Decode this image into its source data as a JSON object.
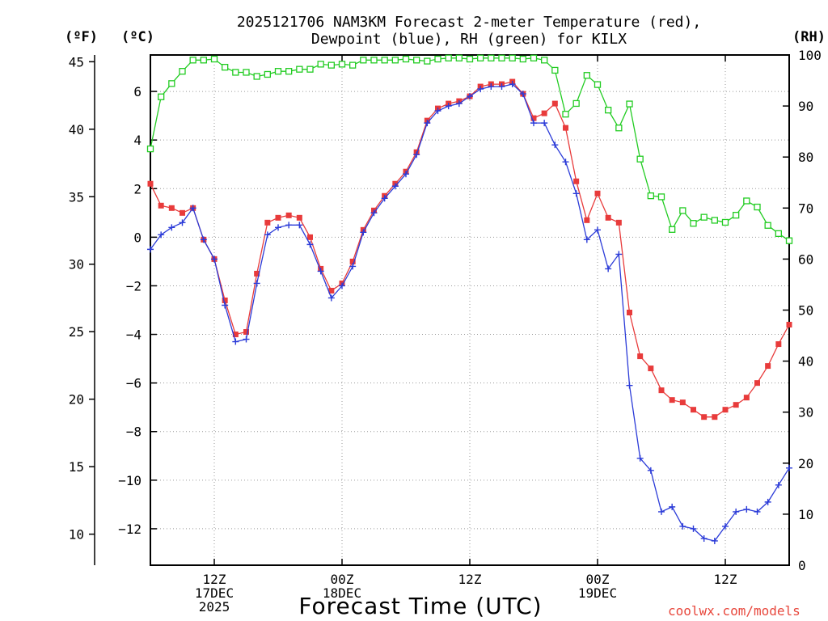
{
  "chart_data": {
    "type": "line",
    "title_line1": "2025121706 NAM3KM Forecast 2-meter Temperature (red),",
    "title_line2": "Dewpoint (blue), RH (green) for KILX",
    "units": {
      "fahrenheit": "(ºF)",
      "celsius": "(ºC)",
      "rh": "(RH)"
    },
    "xlabel": "Forecast Time (UTC)",
    "credit": "coolwx.com/models",
    "x_range_hours": [
      0,
      60
    ],
    "x_ticks": [
      {
        "hour": 6,
        "labels": [
          "12Z",
          "17DEC",
          "2025"
        ]
      },
      {
        "hour": 18,
        "labels": [
          "00Z",
          "18DEC"
        ]
      },
      {
        "hour": 30,
        "labels": [
          "12Z"
        ]
      },
      {
        "hour": 42,
        "labels": [
          "00Z",
          "19DEC"
        ]
      },
      {
        "hour": 54,
        "labels": [
          "12Z"
        ]
      }
    ],
    "y_celsius": {
      "range": [
        -13.5,
        7.5
      ],
      "ticks": [
        6,
        4,
        2,
        0,
        -2,
        -4,
        -6,
        -8,
        -10,
        -12
      ],
      "tick_labels": [
        "6",
        "4",
        "2",
        "0",
        "−2",
        "−4",
        "−6",
        "−8",
        "−10",
        "−12"
      ]
    },
    "y_fahrenheit": {
      "ticks": [
        45,
        40,
        35,
        30,
        25,
        20,
        15,
        10
      ],
      "tick_labels": [
        "45",
        "40",
        "35",
        "30",
        "25",
        "20",
        "15",
        "10"
      ]
    },
    "y_rh": {
      "range": [
        0,
        100
      ],
      "ticks": [
        100,
        90,
        80,
        70,
        60,
        50,
        40,
        30,
        20,
        10,
        0
      ],
      "tick_labels": [
        "100",
        "90",
        "80",
        "70",
        "60",
        "50",
        "40",
        "30",
        "20",
        "10",
        "0"
      ]
    },
    "series": [
      {
        "name": "Temperature (°C)",
        "color": "#e83b3b",
        "marker": "square",
        "axis": "celsius",
        "x": [
          0,
          1,
          2,
          3,
          4,
          5,
          6,
          7,
          8,
          9,
          10,
          11,
          12,
          13,
          14,
          15,
          16,
          17,
          18,
          19,
          20,
          21,
          22,
          23,
          24,
          25,
          26,
          27,
          28,
          29,
          30,
          31,
          32,
          33,
          34,
          35,
          36,
          37,
          38,
          39,
          40,
          41,
          42,
          43,
          44,
          45,
          46,
          47,
          48,
          49,
          50,
          51,
          52,
          53,
          54,
          55,
          56,
          57,
          58,
          59,
          60
        ],
        "values": [
          2.2,
          1.3,
          1.2,
          1.0,
          1.2,
          -0.1,
          -0.9,
          -2.6,
          -4.0,
          -3.9,
          -1.5,
          0.6,
          0.8,
          0.9,
          0.8,
          0.0,
          -1.3,
          -2.2,
          -1.9,
          -1.0,
          0.3,
          1.1,
          1.7,
          2.2,
          2.7,
          3.5,
          4.8,
          5.3,
          5.5,
          5.6,
          5.8,
          6.2,
          6.3,
          6.3,
          6.4,
          5.9,
          4.9,
          5.1,
          5.5,
          4.5,
          2.3,
          0.7,
          1.8,
          0.8,
          0.6,
          -3.1,
          -4.9,
          -5.4,
          -6.3,
          -6.7,
          -6.8,
          -7.1,
          -7.4,
          -7.4,
          -7.1,
          -6.9,
          -6.6,
          -6.0,
          -5.3,
          -4.4,
          -3.6
        ]
      },
      {
        "name": "Dewpoint (°C)",
        "color": "#2b3bd8",
        "marker": "plus",
        "axis": "celsius",
        "x": [
          0,
          1,
          2,
          3,
          4,
          5,
          6,
          7,
          8,
          9,
          10,
          11,
          12,
          13,
          14,
          15,
          16,
          17,
          18,
          19,
          20,
          21,
          22,
          23,
          24,
          25,
          26,
          27,
          28,
          29,
          30,
          31,
          32,
          33,
          34,
          35,
          36,
          37,
          38,
          39,
          40,
          41,
          42,
          43,
          44,
          45,
          46,
          47,
          48,
          49,
          50,
          51,
          52,
          53,
          54,
          55,
          56,
          57,
          58,
          59,
          60
        ],
        "values": [
          -0.5,
          0.1,
          0.4,
          0.6,
          1.2,
          -0.1,
          -0.9,
          -2.8,
          -4.3,
          -4.2,
          -1.9,
          0.1,
          0.4,
          0.5,
          0.5,
          -0.3,
          -1.4,
          -2.5,
          -2.0,
          -1.2,
          0.2,
          1.0,
          1.6,
          2.1,
          2.6,
          3.4,
          4.7,
          5.2,
          5.4,
          5.5,
          5.8,
          6.1,
          6.2,
          6.2,
          6.3,
          5.9,
          4.7,
          4.7,
          3.8,
          3.1,
          1.8,
          -0.1,
          0.3,
          -1.3,
          -0.7,
          -6.1,
          -9.1,
          -9.6,
          -11.3,
          -11.1,
          -11.9,
          -12.0,
          -12.4,
          -12.5,
          -11.9,
          -11.3,
          -11.2,
          -11.3,
          -10.9,
          -10.2,
          -9.5
        ]
      },
      {
        "name": "RH (%)",
        "color": "#22cc22",
        "marker": "open-square",
        "axis": "rh",
        "x": [
          0,
          1,
          2,
          3,
          4,
          5,
          6,
          7,
          8,
          9,
          10,
          11,
          12,
          13,
          14,
          15,
          16,
          17,
          18,
          19,
          20,
          21,
          22,
          23,
          24,
          25,
          26,
          27,
          28,
          29,
          30,
          31,
          32,
          33,
          34,
          35,
          36,
          37,
          38,
          39,
          40,
          41,
          42,
          43,
          44,
          45,
          46,
          47,
          48,
          49,
          50,
          51,
          52,
          53,
          54,
          55,
          56,
          57,
          58,
          59,
          60
        ],
        "values": [
          81.6,
          91.8,
          94.4,
          96.8,
          99.0,
          99.0,
          99.2,
          97.6,
          96.6,
          96.6,
          95.8,
          96.2,
          96.8,
          96.8,
          97.2,
          97.2,
          98.2,
          98.0,
          98.2,
          98.0,
          99.0,
          99.0,
          99.0,
          99.0,
          99.2,
          99.0,
          98.8,
          99.2,
          99.4,
          99.4,
          99.2,
          99.4,
          99.4,
          99.4,
          99.4,
          99.2,
          99.4,
          99.0,
          97.0,
          88.4,
          90.5,
          96.0,
          94.2,
          89.2,
          85.7,
          90.4,
          79.6,
          72.4,
          72.2,
          65.8,
          69.5,
          67.0,
          68.2,
          67.6,
          67.2,
          68.6,
          71.4,
          70.2,
          66.6,
          65.0,
          63.6
        ]
      }
    ]
  }
}
